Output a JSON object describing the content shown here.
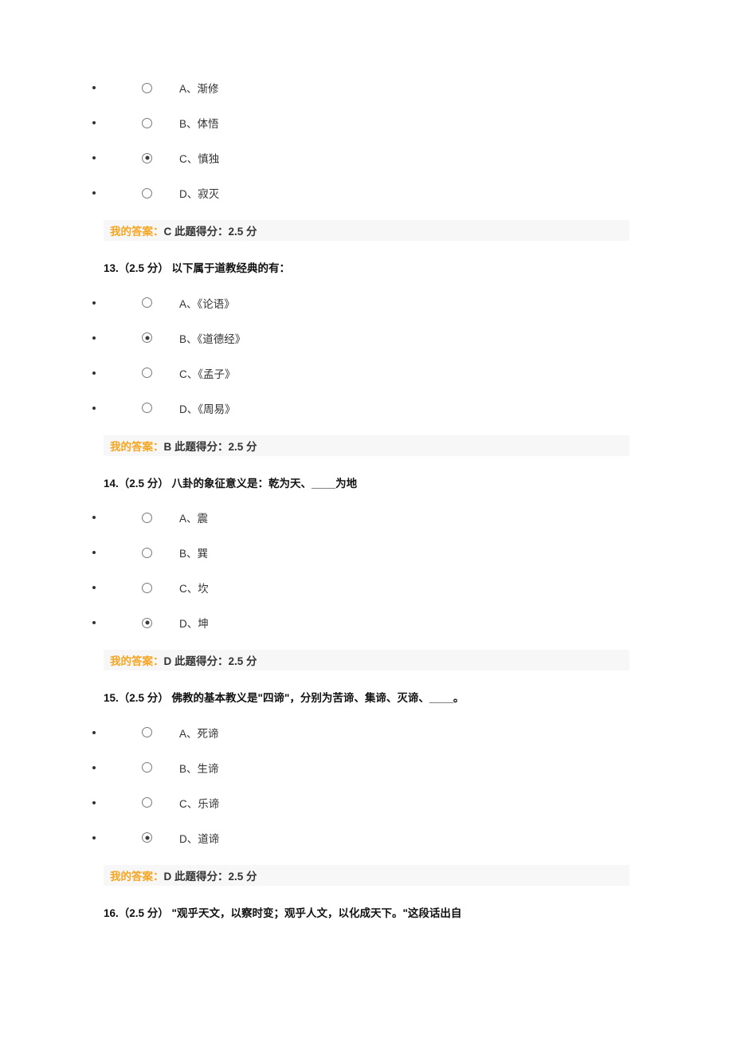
{
  "answer_label": "我的答案：",
  "score_prefix": "此题得分：",
  "score_suffix": " 分",
  "colors": {
    "answer_label": "#f5a623",
    "answer_bar_bg": "#f7f7f7",
    "text": "#333333",
    "page_bg": "#ffffff"
  },
  "typography": {
    "base_fontsize": 13.5,
    "question_weight": "bold"
  },
  "questions": [
    {
      "number": "",
      "prompt": "",
      "options": [
        {
          "label": "A、渐修",
          "selected": false
        },
        {
          "label": "B、体悟",
          "selected": false
        },
        {
          "label": "C、慎独",
          "selected": true
        },
        {
          "label": "D、寂灭",
          "selected": false
        }
      ],
      "answer": "C",
      "score": "2.5"
    },
    {
      "number": "13.（2.5 分）",
      "prompt": " 以下属于道教经典的有：",
      "options": [
        {
          "label": "A、《论语》",
          "selected": false
        },
        {
          "label": "B、《道德经》",
          "selected": true
        },
        {
          "label": "C、《孟子》",
          "selected": false
        },
        {
          "label": "D、《周易》",
          "selected": false
        }
      ],
      "answer": "B",
      "score": "2.5"
    },
    {
      "number": "14.（2.5 分）",
      "prompt": " 八卦的象征意义是：乾为天、____为地",
      "options": [
        {
          "label": "A、震",
          "selected": false
        },
        {
          "label": "B、巽",
          "selected": false
        },
        {
          "label": "C、坎",
          "selected": false
        },
        {
          "label": "D、坤",
          "selected": true
        }
      ],
      "answer": "D",
      "score": "2.5"
    },
    {
      "number": "15.（2.5 分）",
      "prompt": " 佛教的基本教义是\"四谛\"，分别为苦谛、集谛、灭谛、____。",
      "options": [
        {
          "label": "A、死谛",
          "selected": false
        },
        {
          "label": "B、生谛",
          "selected": false
        },
        {
          "label": "C、乐谛",
          "selected": false
        },
        {
          "label": "D、道谛",
          "selected": true
        }
      ],
      "answer": "D",
      "score": "2.5"
    },
    {
      "number": "16.（2.5 分）",
      "prompt": " \"观乎天文，以察时变；观乎人文，以化成天下。\"这段话出自",
      "options": [],
      "answer": null,
      "score": null
    }
  ]
}
